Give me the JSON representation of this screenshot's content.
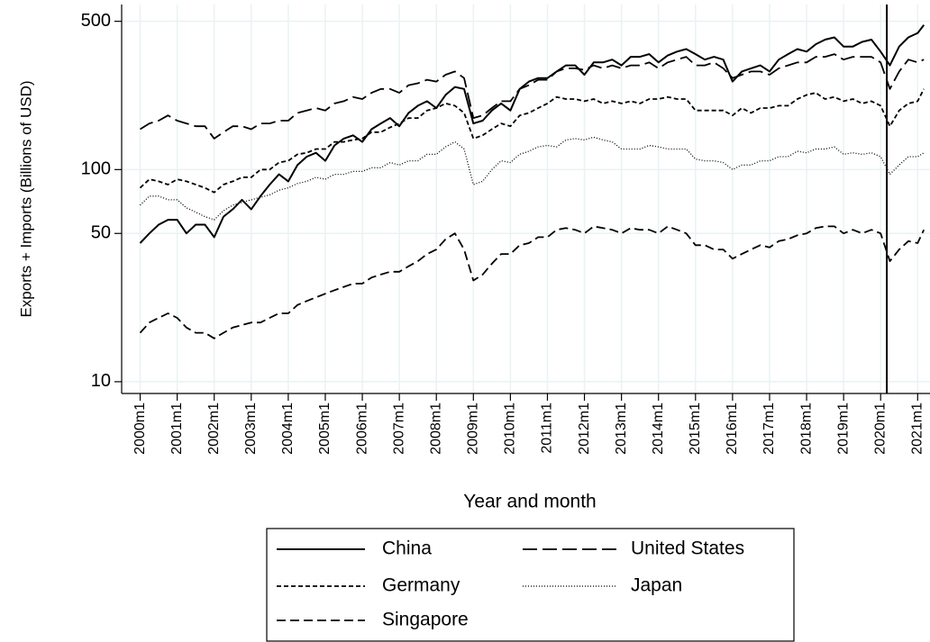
{
  "chart_data": {
    "type": "line",
    "y_label": "Exports + Imports (Billions of USD)",
    "x_label": "Year and month",
    "log_y": true,
    "grid": true,
    "legend_position": "bottom",
    "ylim": [
      8.8,
      600
    ],
    "yticks": [
      10,
      50,
      100,
      500
    ],
    "xlim": [
      "1999m7",
      "2021m5"
    ],
    "xticks": [
      "2000m1",
      "2001m1",
      "2002m1",
      "2003m1",
      "2004m1",
      "2005m1",
      "2006m1",
      "2007m1",
      "2008m1",
      "2009m1",
      "2010m1",
      "2011m1",
      "2012m1",
      "2013m1",
      "2014m1",
      "2015m1",
      "2016m1",
      "2017m1",
      "2018m1",
      "2019m1",
      "2020m1",
      "2021m1"
    ],
    "xline": "2020m3",
    "x": [
      "2000m1",
      "2000m4",
      "2000m7",
      "2000m10",
      "2001m1",
      "2001m4",
      "2001m7",
      "2001m10",
      "2002m1",
      "2002m4",
      "2002m7",
      "2002m10",
      "2003m1",
      "2003m4",
      "2003m7",
      "2003m10",
      "2004m1",
      "2004m4",
      "2004m7",
      "2004m10",
      "2005m1",
      "2005m4",
      "2005m7",
      "2005m10",
      "2006m1",
      "2006m4",
      "2006m7",
      "2006m10",
      "2007m1",
      "2007m4",
      "2007m7",
      "2007m10",
      "2008m1",
      "2008m4",
      "2008m7",
      "2008m10",
      "2009m1",
      "2009m4",
      "2009m7",
      "2009m10",
      "2010m1",
      "2010m4",
      "2010m7",
      "2010m10",
      "2011m1",
      "2011m4",
      "2011m7",
      "2011m10",
      "2012m1",
      "2012m4",
      "2012m7",
      "2012m10",
      "2013m1",
      "2013m4",
      "2013m7",
      "2013m10",
      "2014m1",
      "2014m4",
      "2014m7",
      "2014m10",
      "2015m1",
      "2015m4",
      "2015m7",
      "2015m10",
      "2016m1",
      "2016m4",
      "2016m7",
      "2016m10",
      "2017m1",
      "2017m4",
      "2017m7",
      "2017m10",
      "2018m1",
      "2018m4",
      "2018m7",
      "2018m10",
      "2019m1",
      "2019m4",
      "2019m7",
      "2019m10",
      "2020m1",
      "2020m4",
      "2020m7",
      "2020m10",
      "2021m1",
      "2021m3"
    ],
    "series": [
      {
        "name": "China",
        "color": "#000000",
        "dash": "solid",
        "values": [
          45,
          50,
          55,
          58,
          58,
          50,
          55,
          55,
          48,
          60,
          65,
          72,
          65,
          75,
          85,
          95,
          88,
          105,
          115,
          120,
          110,
          130,
          140,
          145,
          135,
          155,
          165,
          175,
          160,
          185,
          200,
          210,
          195,
          225,
          245,
          240,
          165,
          170,
          190,
          205,
          190,
          240,
          260,
          270,
          270,
          290,
          310,
          310,
          280,
          320,
          320,
          330,
          310,
          340,
          340,
          350,
          320,
          345,
          360,
          370,
          350,
          330,
          340,
          330,
          260,
          290,
          300,
          310,
          290,
          330,
          350,
          370,
          360,
          390,
          410,
          420,
          380,
          380,
          400,
          410,
          360,
          310,
          380,
          420,
          440,
          480
        ]
      },
      {
        "name": "United States",
        "color": "#000000",
        "dash": "long-dash",
        "values": [
          155,
          165,
          170,
          180,
          170,
          165,
          160,
          160,
          140,
          150,
          160,
          160,
          155,
          165,
          165,
          170,
          170,
          185,
          190,
          195,
          190,
          205,
          210,
          220,
          215,
          230,
          240,
          240,
          230,
          250,
          255,
          265,
          260,
          280,
          290,
          270,
          175,
          180,
          195,
          210,
          210,
          240,
          250,
          265,
          265,
          290,
          300,
          300,
          295,
          310,
          300,
          310,
          300,
          310,
          310,
          320,
          300,
          320,
          330,
          340,
          310,
          310,
          320,
          300,
          270,
          280,
          290,
          290,
          280,
          300,
          310,
          320,
          320,
          340,
          340,
          350,
          330,
          340,
          340,
          340,
          320,
          240,
          290,
          330,
          320,
          330
        ]
      },
      {
        "name": "Germany",
        "color": "#000000",
        "dash": "dash",
        "values": [
          82,
          90,
          88,
          85,
          90,
          88,
          85,
          82,
          78,
          85,
          88,
          92,
          92,
          100,
          100,
          108,
          110,
          118,
          120,
          125,
          125,
          135,
          135,
          138,
          140,
          150,
          150,
          158,
          165,
          175,
          175,
          190,
          195,
          205,
          200,
          185,
          140,
          145,
          155,
          165,
          160,
          180,
          185,
          195,
          205,
          220,
          215,
          215,
          210,
          215,
          205,
          210,
          205,
          210,
          205,
          215,
          215,
          220,
          215,
          215,
          190,
          190,
          190,
          190,
          180,
          195,
          185,
          195,
          195,
          200,
          200,
          215,
          225,
          230,
          215,
          220,
          210,
          215,
          205,
          210,
          200,
          160,
          190,
          205,
          210,
          240
        ]
      },
      {
        "name": "Japan",
        "color": "#000000",
        "dash": "dot",
        "values": [
          68,
          75,
          75,
          72,
          72,
          66,
          63,
          60,
          58,
          64,
          68,
          70,
          72,
          74,
          76,
          80,
          82,
          86,
          88,
          92,
          90,
          95,
          95,
          98,
          98,
          102,
          102,
          108,
          105,
          110,
          110,
          118,
          118,
          128,
          135,
          125,
          85,
          88,
          100,
          110,
          108,
          118,
          122,
          128,
          130,
          128,
          138,
          140,
          138,
          142,
          138,
          135,
          125,
          125,
          125,
          130,
          128,
          125,
          125,
          125,
          112,
          110,
          110,
          108,
          100,
          105,
          105,
          110,
          110,
          115,
          115,
          122,
          120,
          125,
          125,
          128,
          118,
          120,
          118,
          120,
          115,
          95,
          105,
          115,
          115,
          120
        ]
      },
      {
        "name": "Singapore",
        "color": "#000000",
        "dash": "medium-dash",
        "values": [
          17,
          19,
          20,
          21,
          20,
          18,
          17,
          17,
          16,
          17,
          18,
          18.5,
          19,
          19,
          20,
          21,
          21,
          23,
          24,
          25,
          26,
          27,
          28,
          29,
          29,
          31,
          32,
          33,
          33,
          35,
          37,
          40,
          42,
          47,
          50,
          42,
          30,
          32,
          36,
          40,
          40,
          44,
          45,
          48,
          48,
          52,
          53,
          52,
          50,
          54,
          53,
          52,
          50,
          53,
          52,
          52,
          50,
          54,
          52,
          50,
          44,
          44,
          42,
          42,
          38,
          40,
          42,
          44,
          43,
          46,
          47,
          49,
          50,
          53,
          54,
          54,
          50,
          52,
          50,
          52,
          50,
          37,
          42,
          46,
          45,
          52
        ]
      }
    ]
  }
}
